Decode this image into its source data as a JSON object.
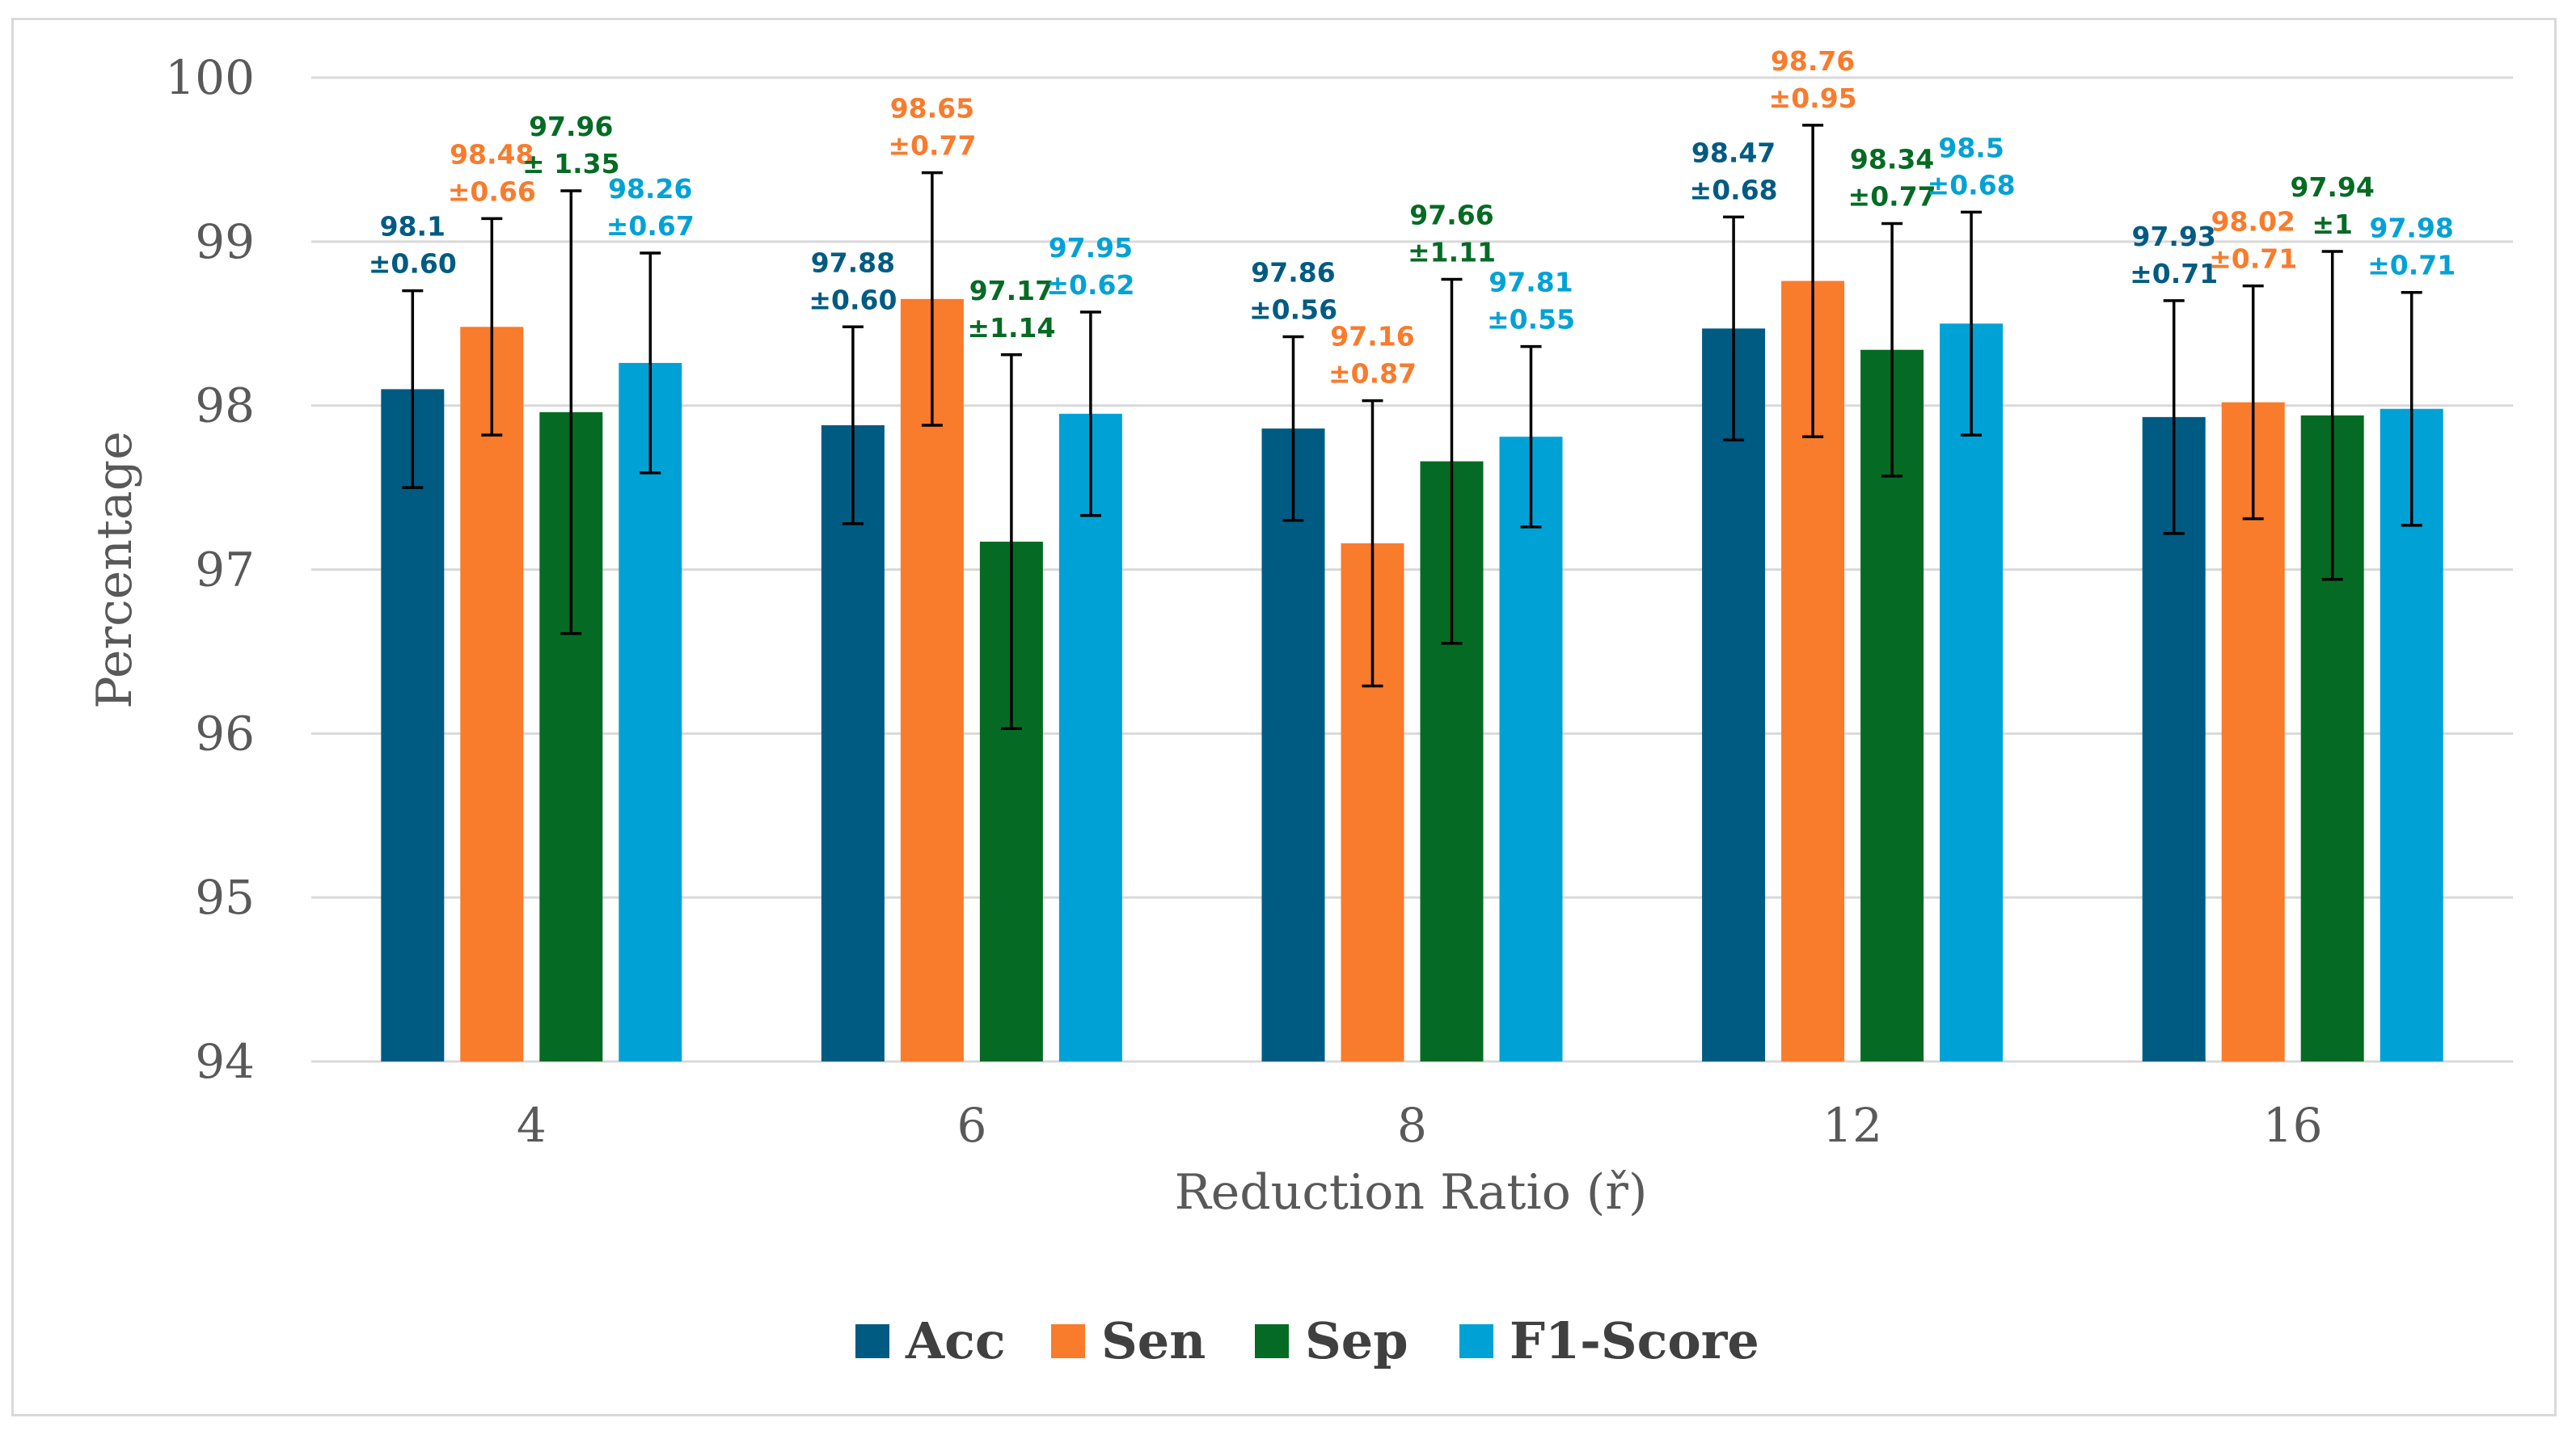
{
  "chart_data": {
    "type": "bar",
    "xlabel": "Reduction Ratio (ř)",
    "ylabel": "Percentage",
    "ylim": [
      94,
      100
    ],
    "yticks": [
      "94",
      "95",
      "96",
      "97",
      "98",
      "99",
      "100"
    ],
    "categories": [
      "4",
      "6",
      "8",
      "12",
      "16"
    ],
    "grid": true,
    "legend_position": "bottom",
    "series": [
      {
        "name": "Acc",
        "color": "#005b82",
        "values": [
          98.1,
          97.88,
          97.86,
          98.47,
          97.93
        ],
        "errors": [
          0.6,
          0.6,
          0.56,
          0.68,
          0.71
        ],
        "value_labels": [
          "98.1",
          "97.88",
          "97.86",
          "98.47",
          "97.93"
        ],
        "error_labels": [
          "±0.60",
          "±0.60",
          "±0.56",
          "±0.68",
          "±0.71"
        ]
      },
      {
        "name": "Sen",
        "color": "#f97b2c",
        "values": [
          98.48,
          98.65,
          97.16,
          98.76,
          98.02
        ],
        "errors": [
          0.66,
          0.77,
          0.87,
          0.95,
          0.71
        ],
        "value_labels": [
          "98.48",
          "98.65",
          "97.16",
          "98.76",
          "98.02"
        ],
        "error_labels": [
          "±0.66",
          "±0.77",
          "±0.87",
          "±0.95",
          "±0.71"
        ]
      },
      {
        "name": "Sep",
        "color": "#056b24",
        "values": [
          97.96,
          97.17,
          97.66,
          98.34,
          97.94
        ],
        "errors": [
          1.35,
          1.14,
          1.11,
          0.77,
          1.0
        ],
        "value_labels": [
          "97.96",
          "97.17",
          "97.66",
          "98.34",
          "97.94"
        ],
        "error_labels": [
          "± 1.35",
          "±1.14",
          "±1.11",
          "±0.77",
          "±1"
        ]
      },
      {
        "name": "F1-Score",
        "color": "#00a2d6",
        "values": [
          98.26,
          97.95,
          97.81,
          98.5,
          97.98
        ],
        "errors": [
          0.67,
          0.62,
          0.55,
          0.68,
          0.71
        ],
        "value_labels": [
          "98.26",
          "97.95",
          "97.81",
          "98.5",
          "97.98"
        ],
        "error_labels": [
          "±0.67",
          "±0.62",
          "±0.55",
          "±0.68",
          "±0.71"
        ]
      }
    ]
  }
}
